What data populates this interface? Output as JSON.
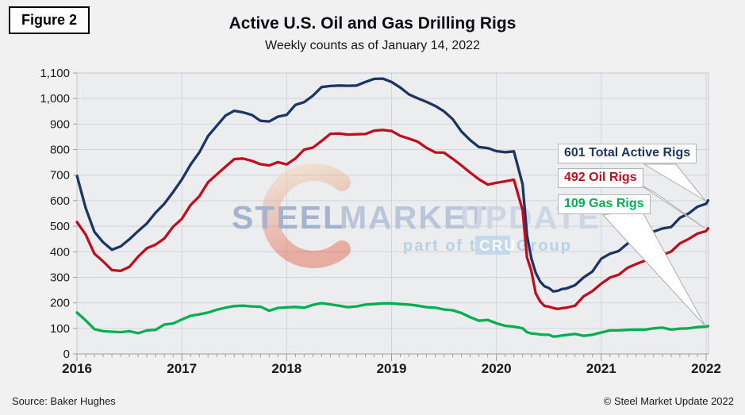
{
  "figure_label": "Figure 2",
  "header": {
    "title": "Active U.S. Oil and Gas Drilling Rigs",
    "subtitle": "Weekly counts as of January 14, 2022"
  },
  "watermark": {
    "word1": "STEEL",
    "word2": "MARKET",
    "word3": "UPDATE",
    "line2_prefix": "part of the",
    "line2_box": "CRU",
    "line2_suffix": "Group",
    "colors": {
      "word1": "#93A5C7",
      "word2": "#AFBCD4",
      "word3": "#C8D1E2",
      "line2_text": "#AFCBE3",
      "cru_box": "#BBD6EC",
      "cru_text": "#FFFFFF",
      "crescent_top": "#F6D0A6",
      "crescent_bottom": "#E0492F"
    }
  },
  "callouts": [
    {
      "label": "601 Total Active Rigs",
      "value": 601,
      "color": "#1C3563"
    },
    {
      "label": "492 Oil Rigs",
      "value": 492,
      "color": "#C00E1E"
    },
    {
      "label": "109 Gas Rigs",
      "value": 109,
      "color": "#00B050"
    }
  ],
  "footer": {
    "source": "Source: Baker Hughes",
    "copyright": "© Steel Market Update 2022"
  },
  "colors": {
    "page_bg": "#F1F1F2",
    "plot_bg": "#EBEDEF",
    "gridline": "#D3D4D8",
    "plot_border": "#C7C8CC",
    "axis": "#9B9B9E",
    "label_text": "#1A1A1A",
    "wedge_border": "#ADADAD"
  },
  "chart_data": {
    "type": "line",
    "title": "Active U.S. Oil and Gas Drilling Rigs",
    "subtitle": "Weekly counts as of January 14, 2022",
    "xlabel": "",
    "ylabel": "",
    "ylim": [
      0,
      1100
    ],
    "ytick_step": 100,
    "grid": true,
    "legend_position": "callouts-right",
    "x_unit": "months since January 2016 (72.5 = week of January 14, 2022)",
    "x_ticks": [
      "2016",
      "2017",
      "2018",
      "2019",
      "2020",
      "2021",
      "2022"
    ],
    "x_tick_month_positions": [
      0,
      12,
      24,
      36,
      48,
      60,
      72
    ],
    "x": [
      0,
      1,
      2,
      3,
      4,
      5,
      6,
      7,
      8,
      9,
      10,
      11,
      12,
      13,
      14,
      15,
      16,
      17,
      18,
      19,
      20,
      21,
      22,
      23,
      24,
      25,
      26,
      27,
      28,
      29,
      30,
      31,
      32,
      33,
      34,
      35,
      36,
      37,
      38,
      39,
      40,
      41,
      42,
      43,
      44,
      45,
      46,
      47,
      48,
      49,
      50,
      51,
      51.5,
      52,
      52.5,
      53,
      53.5,
      54,
      54.5,
      55,
      55.5,
      56,
      57,
      58,
      59,
      60,
      61,
      62,
      63,
      64,
      65,
      66,
      67,
      68,
      69,
      70,
      71,
      72,
      72.5
    ],
    "series": [
      {
        "name": "Total Active Rigs",
        "latest_label": "601 Total Active Rigs",
        "latest": 601,
        "color": "#1C3563",
        "values": [
          698,
          571,
          478,
          437,
          408,
          421,
          449,
          481,
          511,
          553,
          588,
          634,
          683,
          741,
          789,
          853,
          893,
          933,
          952,
          946,
          936,
          913,
          910,
          929,
          936,
          975,
          986,
          1011,
          1045,
          1049,
          1051,
          1050,
          1051,
          1065,
          1077,
          1078,
          1065,
          1043,
          1016,
          1001,
          987,
          971,
          950,
          919,
          871,
          837,
          810,
          806,
          794,
          790,
          793,
          664,
          465,
          374,
          318,
          284,
          265,
          258,
          245,
          247,
          254,
          256,
          269,
          300,
          323,
          373,
          392,
          403,
          432,
          448,
          461,
          479,
          491,
          497,
          533,
          550,
          576,
          588,
          601
        ]
      },
      {
        "name": "Oil Rigs",
        "latest_label": "492 Oil Rigs",
        "latest": 492,
        "color": "#C00E1E",
        "values": [
          516,
          467,
          392,
          362,
          328,
          325,
          341,
          381,
          414,
          428,
          452,
          498,
          529,
          583,
          617,
          672,
          703,
          733,
          763,
          765,
          756,
          743,
          738,
          751,
          742,
          765,
          800,
          808,
          834,
          862,
          863,
          859,
          860,
          861,
          874,
          877,
          873,
          854,
          843,
          831,
          807,
          789,
          788,
          764,
          738,
          710,
          684,
          663,
          670,
          676,
          682,
          562,
          378,
          325,
          237,
          206,
          188,
          185,
          180,
          176,
          179,
          181,
          189,
          226,
          246,
          275,
          299,
          310,
          337,
          352,
          365,
          378,
          387,
          401,
          433,
          450,
          471,
          481,
          492
        ]
      },
      {
        "name": "Gas Rigs",
        "latest_label": "109 Gas Rigs",
        "latest": 109,
        "color": "#00B050",
        "values": [
          162,
          131,
          97,
          89,
          87,
          85,
          89,
          81,
          92,
          94,
          115,
          119,
          135,
          149,
          155,
          162,
          173,
          181,
          187,
          189,
          186,
          185,
          169,
          180,
          182,
          184,
          181,
          192,
          199,
          194,
          189,
          183,
          186,
          193,
          195,
          198,
          198,
          195,
          193,
          189,
          183,
          181,
          174,
          171,
          160,
          144,
          130,
          133,
          120,
          110,
          107,
          100,
          85,
          80,
          79,
          76,
          75,
          75,
          68,
          69,
          72,
          74,
          78,
          71,
          75,
          84,
          92,
          92,
          94,
          95,
          95,
          100,
          103,
          95,
          99,
          100,
          105,
          107,
          109
        ]
      }
    ]
  }
}
